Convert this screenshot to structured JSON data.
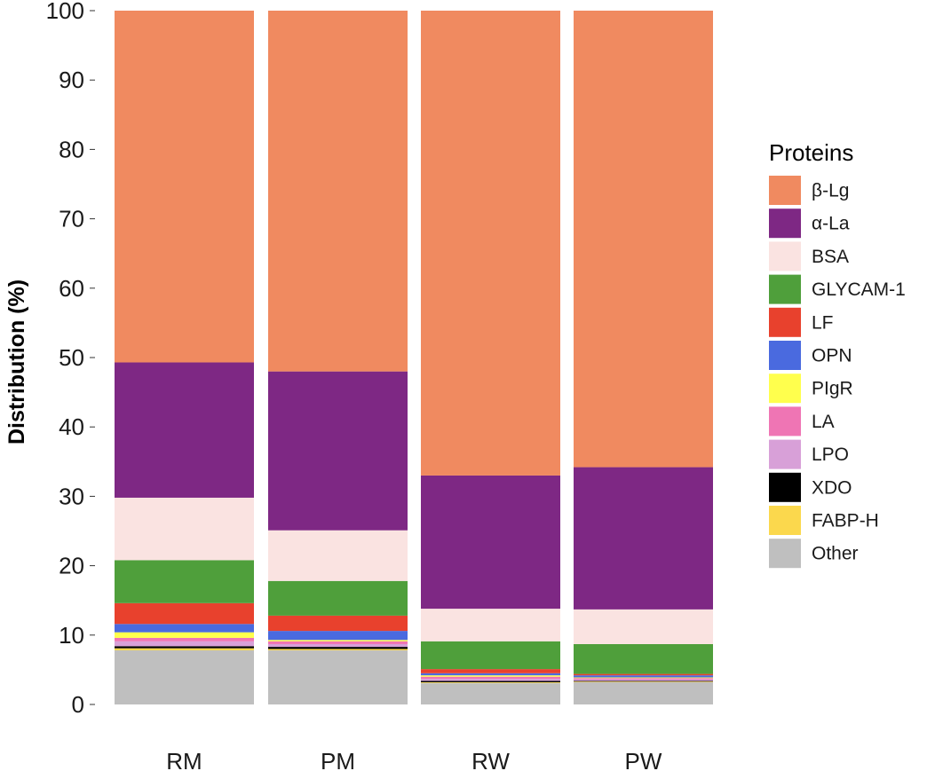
{
  "chart_data": {
    "type": "bar",
    "stacked": true,
    "ylabel": "Distribution (%)",
    "xlabel": "",
    "ylim": [
      0,
      100
    ],
    "yticks": [
      0,
      10,
      20,
      30,
      40,
      50,
      60,
      70,
      80,
      90,
      100
    ],
    "grid": false,
    "categories": [
      "RM",
      "PM",
      "RW",
      "PW"
    ],
    "legend": {
      "title": "Proteins",
      "position": "right"
    },
    "series": [
      {
        "name": "Other",
        "color": "#bfbfbf",
        "values": [
          7.8,
          7.8,
          3.1,
          3.2
        ]
      },
      {
        "name": "FABP-H",
        "color": "#fbd84d",
        "values": [
          0.3,
          0.2,
          0.1,
          0.1
        ]
      },
      {
        "name": "XDO",
        "color": "#000000",
        "values": [
          0.3,
          0.3,
          0.2,
          0.1
        ]
      },
      {
        "name": "LPO",
        "color": "#d8a0d8",
        "values": [
          0.7,
          0.4,
          0.3,
          0.2
        ]
      },
      {
        "name": "LA",
        "color": "#ef75b4",
        "values": [
          0.5,
          0.4,
          0.3,
          0.2
        ]
      },
      {
        "name": "PIgR",
        "color": "#ffff4d",
        "values": [
          0.8,
          0.2,
          0.2,
          0.1
        ]
      },
      {
        "name": "OPN",
        "color": "#4a6adf",
        "values": [
          1.2,
          1.3,
          0.3,
          0.3
        ]
      },
      {
        "name": "LF",
        "color": "#e8412d",
        "values": [
          3.0,
          2.2,
          0.6,
          0.2
        ]
      },
      {
        "name": "GLYCAM-1",
        "color": "#4f9f3b",
        "values": [
          6.2,
          5.0,
          4.0,
          4.3
        ]
      },
      {
        "name": "BSA",
        "color": "#fae3e1",
        "values": [
          9.0,
          7.3,
          4.7,
          5.0
        ]
      },
      {
        "name": "α-La",
        "color": "#7e2884",
        "values": [
          19.5,
          22.9,
          19.2,
          20.5
        ]
      },
      {
        "name": "β-Lg",
        "color": "#f08a60",
        "values": [
          50.7,
          52.0,
          67.0,
          65.8
        ]
      }
    ]
  }
}
